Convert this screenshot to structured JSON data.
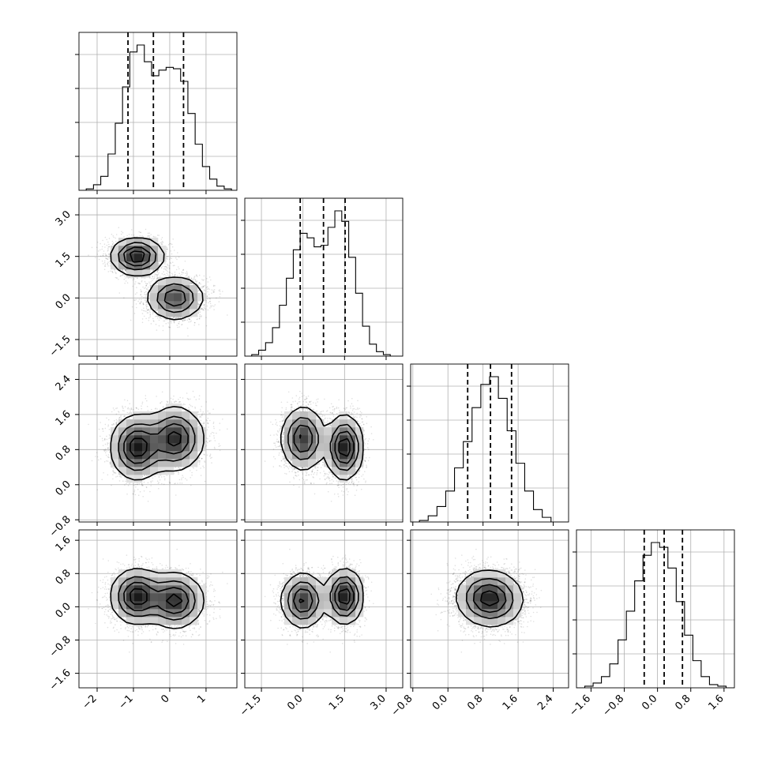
{
  "chart_data": {
    "type": "corner",
    "grid": true,
    "parameters": [
      {
        "range": [
          -2.5,
          1.85
        ],
        "ticks": [
          -2,
          -1,
          0,
          1
        ],
        "tick_labels": [
          "−2",
          "−1",
          "0",
          "1"
        ],
        "quantiles": [
          -1.15,
          -0.45,
          0.38
        ],
        "hist_x": [
          -2.5,
          -2.3,
          -2.1,
          -1.9,
          -1.7,
          -1.5,
          -1.3,
          -1.1,
          -0.9,
          -0.7,
          -0.5,
          -0.3,
          -0.1,
          0.1,
          0.3,
          0.5,
          0.7,
          0.9,
          1.1,
          1.3,
          1.5,
          1.7,
          1.85
        ],
        "hist_density": [
          0,
          0.01,
          0.04,
          0.1,
          0.26,
          0.48,
          0.74,
          0.99,
          1.04,
          0.92,
          0.82,
          0.86,
          0.88,
          0.87,
          0.78,
          0.55,
          0.33,
          0.17,
          0.08,
          0.03,
          0.01,
          0
        ]
      },
      {
        "range": [
          -2.1,
          3.6
        ],
        "ticks": [
          -1.5,
          0.0,
          1.5,
          3.0
        ],
        "tick_labels": [
          "−1.5",
          "0.0",
          "1.5",
          "3.0"
        ],
        "quantiles": [
          -0.1,
          0.74,
          1.52
        ],
        "hist_x": [
          -2.1,
          -1.85,
          -1.6,
          -1.35,
          -1.1,
          -0.85,
          -0.6,
          -0.35,
          -0.1,
          0.15,
          0.4,
          0.65,
          0.9,
          1.15,
          1.4,
          1.65,
          1.9,
          2.15,
          2.4,
          2.65,
          2.9,
          3.15,
          3.6
        ],
        "hist_density": [
          0,
          0.01,
          0.04,
          0.09,
          0.19,
          0.34,
          0.52,
          0.71,
          0.82,
          0.79,
          0.73,
          0.74,
          0.86,
          0.97,
          0.9,
          0.66,
          0.42,
          0.2,
          0.08,
          0.03,
          0.01,
          0
        ]
      },
      {
        "range": [
          -0.85,
          2.75
        ],
        "ticks": [
          -0.8,
          0.0,
          0.8,
          1.6,
          2.4
        ],
        "tick_labels": [
          "−0.8",
          "0.0",
          "0.8",
          "1.6",
          "2.4"
        ],
        "quantiles": [
          0.45,
          0.97,
          1.45
        ],
        "hist_x": [
          -0.85,
          -0.65,
          -0.45,
          -0.25,
          -0.05,
          0.15,
          0.35,
          0.55,
          0.75,
          0.95,
          1.15,
          1.35,
          1.55,
          1.75,
          1.95,
          2.15,
          2.35,
          2.75
        ],
        "hist_density": [
          0,
          0.01,
          0.04,
          0.1,
          0.2,
          0.35,
          0.52,
          0.74,
          0.89,
          0.94,
          0.8,
          0.59,
          0.38,
          0.2,
          0.08,
          0.03,
          0
        ]
      },
      {
        "range": [
          -1.95,
          1.85
        ],
        "ticks": [
          -1.6,
          -0.8,
          0.0,
          0.8,
          1.6
        ],
        "tick_labels": [
          "−1.6",
          "−0.8",
          "0.0",
          "0.8",
          "1.6"
        ],
        "quantiles": [
          -0.32,
          0.16,
          0.6
        ],
        "hist_x": [
          -1.95,
          -1.75,
          -1.55,
          -1.35,
          -1.15,
          -0.95,
          -0.75,
          -0.55,
          -0.35,
          -0.15,
          0.05,
          0.25,
          0.45,
          0.65,
          0.85,
          1.05,
          1.25,
          1.45,
          1.65,
          1.85
        ],
        "hist_density": [
          0,
          0.01,
          0.03,
          0.07,
          0.15,
          0.3,
          0.48,
          0.67,
          0.83,
          0.91,
          0.88,
          0.75,
          0.54,
          0.33,
          0.17,
          0.07,
          0.02,
          0.01,
          0
        ]
      }
    ],
    "joint_components": [
      {
        "weight": 0.5,
        "mean": [
          -0.9,
          1.5,
          0.85,
          0.25
        ],
        "std": [
          0.35,
          0.32,
          0.35,
          0.32
        ]
      },
      {
        "weight": 0.5,
        "mean": [
          0.15,
          0.0,
          1.05,
          0.15
        ],
        "std": [
          0.38,
          0.38,
          0.35,
          0.32
        ]
      }
    ],
    "contour_levels": [
      0.5,
      1.0,
      1.5,
      2.0
    ]
  }
}
